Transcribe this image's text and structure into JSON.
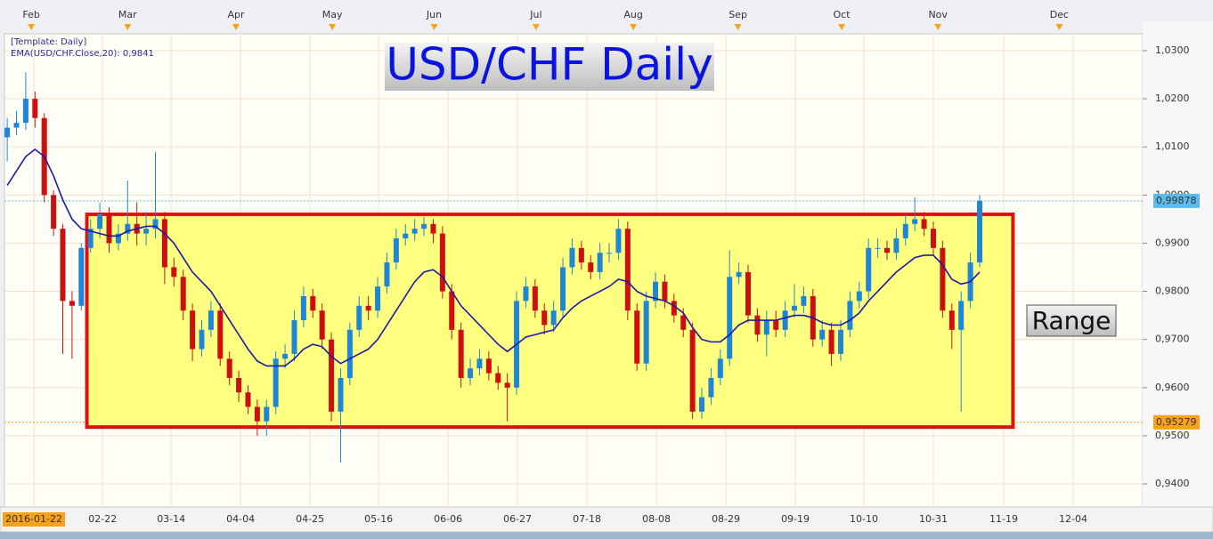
{
  "chart_data": {
    "type": "candlestick",
    "title": "USD/CHF Daily",
    "template_label": "[Template: Daily]",
    "up_color": "#1f86d6",
    "down_color": "#cc1010",
    "open": [
      1.012,
      1.014,
      1.015,
      1.02,
      1.016,
      1.0,
      0.993,
      0.978,
      0.977,
      0.989,
      0.993,
      0.996,
      0.99,
      0.992,
      0.994,
      0.992,
      0.993,
      0.995,
      0.985,
      0.983,
      0.976,
      0.968,
      0.972,
      0.976,
      0.966,
      0.962,
      0.959,
      0.956,
      0.953,
      0.956,
      0.966,
      0.967,
      0.974,
      0.979,
      0.976,
      0.97,
      0.955,
      0.962,
      0.972,
      0.977,
      0.976,
      0.981,
      0.986,
      0.991,
      0.992,
      0.993,
      0.994,
      0.992,
      0.98,
      0.972,
      0.962,
      0.964,
      0.966,
      0.963,
      0.961,
      0.96,
      0.978,
      0.981,
      0.976,
      0.973,
      0.976,
      0.985,
      0.989,
      0.986,
      0.984,
      0.988,
      0.988,
      0.993,
      0.976,
      0.965,
      0.978,
      0.982,
      0.978,
      0.975,
      0.972,
      0.955,
      0.958,
      0.962,
      0.966,
      0.983,
      0.984,
      0.975,
      0.971,
      0.974,
      0.972,
      0.976,
      0.977,
      0.979,
      0.97,
      0.972,
      0.967,
      0.972,
      0.978,
      0.98,
      0.989,
      0.989,
      0.988,
      0.991,
      0.994,
      0.995,
      0.993,
      0.989,
      0.976,
      0.972,
      0.978,
      0.986
    ],
    "close": [
      1.014,
      1.015,
      1.02,
      1.016,
      1.0,
      0.993,
      0.978,
      0.977,
      0.989,
      0.993,
      0.996,
      0.99,
      0.992,
      0.994,
      0.992,
      0.993,
      0.995,
      0.985,
      0.983,
      0.976,
      0.968,
      0.972,
      0.976,
      0.966,
      0.962,
      0.959,
      0.956,
      0.953,
      0.956,
      0.966,
      0.967,
      0.974,
      0.979,
      0.976,
      0.97,
      0.955,
      0.962,
      0.972,
      0.977,
      0.976,
      0.981,
      0.986,
      0.991,
      0.992,
      0.993,
      0.994,
      0.992,
      0.98,
      0.972,
      0.962,
      0.964,
      0.966,
      0.963,
      0.961,
      0.96,
      0.978,
      0.981,
      0.976,
      0.973,
      0.976,
      0.985,
      0.989,
      0.986,
      0.984,
      0.988,
      0.988,
      0.993,
      0.976,
      0.965,
      0.978,
      0.982,
      0.978,
      0.975,
      0.972,
      0.955,
      0.958,
      0.962,
      0.966,
      0.983,
      0.984,
      0.975,
      0.971,
      0.974,
      0.972,
      0.976,
      0.977,
      0.979,
      0.97,
      0.972,
      0.967,
      0.972,
      0.978,
      0.98,
      0.989,
      0.989,
      0.988,
      0.991,
      0.994,
      0.995,
      0.993,
      0.989,
      0.976,
      0.972,
      0.978,
      0.986,
      0.9988
    ],
    "high": [
      1.016,
      1.0175,
      1.0255,
      1.0215,
      1.017,
      1.001,
      0.994,
      0.98,
      0.99,
      0.995,
      0.9985,
      0.9975,
      0.994,
      1.003,
      0.9985,
      0.9965,
      1.009,
      0.9965,
      0.987,
      0.9845,
      0.9775,
      0.974,
      0.978,
      0.9775,
      0.9675,
      0.9635,
      0.9605,
      0.9575,
      0.9575,
      0.9675,
      0.969,
      0.976,
      0.981,
      0.9805,
      0.9775,
      0.9715,
      0.964,
      0.9735,
      0.979,
      0.979,
      0.983,
      0.988,
      0.993,
      0.994,
      0.995,
      0.9955,
      0.995,
      0.9935,
      0.9815,
      0.9735,
      0.966,
      0.968,
      0.9675,
      0.9645,
      0.963,
      0.98,
      0.983,
      0.9825,
      0.9775,
      0.978,
      0.987,
      0.991,
      0.9905,
      0.9875,
      0.99,
      0.99,
      0.995,
      0.9945,
      0.9775,
      0.98,
      0.984,
      0.9835,
      0.9795,
      0.9765,
      0.9735,
      0.96,
      0.964,
      0.968,
      0.9885,
      0.986,
      0.9855,
      0.9765,
      0.976,
      0.976,
      0.978,
      0.9815,
      0.981,
      0.9805,
      0.974,
      0.9735,
      0.974,
      0.98,
      0.982,
      0.991,
      0.991,
      0.9905,
      0.993,
      0.996,
      0.9995,
      0.9965,
      0.9945,
      0.9905,
      0.9775,
      0.98,
      0.988,
      1.0
    ],
    "low": [
      1.007,
      1.0125,
      1.0135,
      1.014,
      0.9985,
      0.9915,
      0.967,
      0.966,
      0.976,
      0.988,
      0.991,
      0.988,
      0.9885,
      0.9905,
      0.9895,
      0.9895,
      0.991,
      0.9815,
      0.981,
      0.974,
      0.9655,
      0.9665,
      0.9705,
      0.9645,
      0.9605,
      0.957,
      0.9545,
      0.95,
      0.95,
      0.9545,
      0.964,
      0.9655,
      0.9725,
      0.9745,
      0.968,
      0.953,
      0.9445,
      0.9605,
      0.9705,
      0.974,
      0.9745,
      0.9795,
      0.9845,
      0.9895,
      0.9905,
      0.9915,
      0.99,
      0.9785,
      0.97,
      0.96,
      0.9605,
      0.9625,
      0.9615,
      0.9595,
      0.953,
      0.9585,
      0.9765,
      0.9745,
      0.971,
      0.9715,
      0.9745,
      0.9835,
      0.9845,
      0.9825,
      0.9825,
      0.986,
      0.9865,
      0.974,
      0.9635,
      0.9635,
      0.9765,
      0.9765,
      0.9735,
      0.9705,
      0.9535,
      0.9535,
      0.9565,
      0.9605,
      0.9645,
      0.9815,
      0.9735,
      0.9695,
      0.9665,
      0.9705,
      0.9705,
      0.9745,
      0.9755,
      0.9685,
      0.9685,
      0.9645,
      0.9655,
      0.9705,
      0.9765,
      0.9785,
      0.987,
      0.9865,
      0.9865,
      0.9895,
      0.9925,
      0.9915,
      0.9875,
      0.9745,
      0.968,
      0.955,
      0.9765,
      0.985
    ],
    "ema": {
      "label": "EMA(USD/CHF.Close,20): 0,9841",
      "color": "#1a1aa8",
      "values": [
        1.002,
        1.005,
        1.008,
        1.0095,
        1.008,
        1.004,
        0.999,
        0.995,
        0.993,
        0.9925,
        0.992,
        0.9915,
        0.9915,
        0.9925,
        0.993,
        0.9935,
        0.9935,
        0.992,
        0.99,
        0.987,
        0.984,
        0.982,
        0.98,
        0.977,
        0.974,
        0.971,
        0.968,
        0.9655,
        0.9645,
        0.9645,
        0.9645,
        0.966,
        0.968,
        0.969,
        0.9685,
        0.9665,
        0.965,
        0.966,
        0.967,
        0.968,
        0.97,
        0.973,
        0.976,
        0.979,
        0.982,
        0.984,
        0.9845,
        0.983,
        0.98,
        0.977,
        0.975,
        0.973,
        0.971,
        0.969,
        0.9675,
        0.969,
        0.9705,
        0.971,
        0.9715,
        0.972,
        0.9745,
        0.9765,
        0.978,
        0.979,
        0.98,
        0.981,
        0.9825,
        0.982,
        0.98,
        0.979,
        0.9785,
        0.978,
        0.977,
        0.9755,
        0.9725,
        0.97,
        0.9695,
        0.9695,
        0.971,
        0.973,
        0.974,
        0.974,
        0.974,
        0.974,
        0.9745,
        0.975,
        0.975,
        0.9745,
        0.9735,
        0.973,
        0.973,
        0.974,
        0.9755,
        0.978,
        0.98,
        0.982,
        0.984,
        0.9855,
        0.987,
        0.9875,
        0.9875,
        0.9855,
        0.9825,
        0.9815,
        0.982,
        0.984
      ]
    },
    "range_box": {
      "label": "Range",
      "top": 0.996,
      "bottom": 0.9518,
      "x_from": 8.6,
      "x_to": 108.6,
      "stroke": "#e01010",
      "fill": "#ffff80"
    },
    "price_lines": [
      {
        "value": 0.99878,
        "label": "0,99878",
        "color": "#5bbcec"
      },
      {
        "value": 0.95279,
        "label": "0,95279",
        "color": "#f7a21a"
      }
    ],
    "xlim": [
      -0.3,
      122.6
    ],
    "ylim": [
      0.9352,
      1.0335
    ],
    "yticks": [
      {
        "value": 1.03,
        "label": "1,0300"
      },
      {
        "value": 1.02,
        "label": "1,0200"
      },
      {
        "value": 1.01,
        "label": "1,0100"
      },
      {
        "value": 1.0,
        "label": "1,0000"
      },
      {
        "value": 0.99,
        "label": "0,9900"
      },
      {
        "value": 0.98,
        "label": "0,9800"
      },
      {
        "value": 0.97,
        "label": "0,9700"
      },
      {
        "value": 0.96,
        "label": "0,9600"
      },
      {
        "value": 0.95,
        "label": "0,9500"
      },
      {
        "value": 0.94,
        "label": "0,9400"
      }
    ],
    "xticks": [
      {
        "value": 2.9,
        "label": "2016-01-22"
      },
      {
        "value": 10.3,
        "label": "02-22"
      },
      {
        "value": 17.7,
        "label": "03-14"
      },
      {
        "value": 25.2,
        "label": "04-04"
      },
      {
        "value": 32.7,
        "label": "04-25"
      },
      {
        "value": 40.1,
        "label": "05-16"
      },
      {
        "value": 47.6,
        "label": "06-06"
      },
      {
        "value": 55.1,
        "label": "06-27"
      },
      {
        "value": 62.6,
        "label": "07-18"
      },
      {
        "value": 70.1,
        "label": "08-08"
      },
      {
        "value": 77.6,
        "label": "08-29"
      },
      {
        "value": 85.1,
        "label": "09-19"
      },
      {
        "value": 92.5,
        "label": "10-10"
      },
      {
        "value": 100.0,
        "label": "10-31"
      },
      {
        "value": 107.6,
        "label": "11-19"
      },
      {
        "value": 115.1,
        "label": "12-04"
      }
    ],
    "month_ticks": [
      {
        "value": 2.6,
        "label": "Feb"
      },
      {
        "value": 13.0,
        "label": "Mar"
      },
      {
        "value": 24.7,
        "label": "Apr"
      },
      {
        "value": 35.1,
        "label": "May"
      },
      {
        "value": 46.1,
        "label": "Jun"
      },
      {
        "value": 57.1,
        "label": "Jul"
      },
      {
        "value": 67.6,
        "label": "Aug"
      },
      {
        "value": 78.9,
        "label": "Sep"
      },
      {
        "value": 90.1,
        "label": "Oct"
      },
      {
        "value": 100.5,
        "label": "Nov"
      },
      {
        "value": 113.6,
        "label": "Dec"
      }
    ],
    "grid": true
  }
}
